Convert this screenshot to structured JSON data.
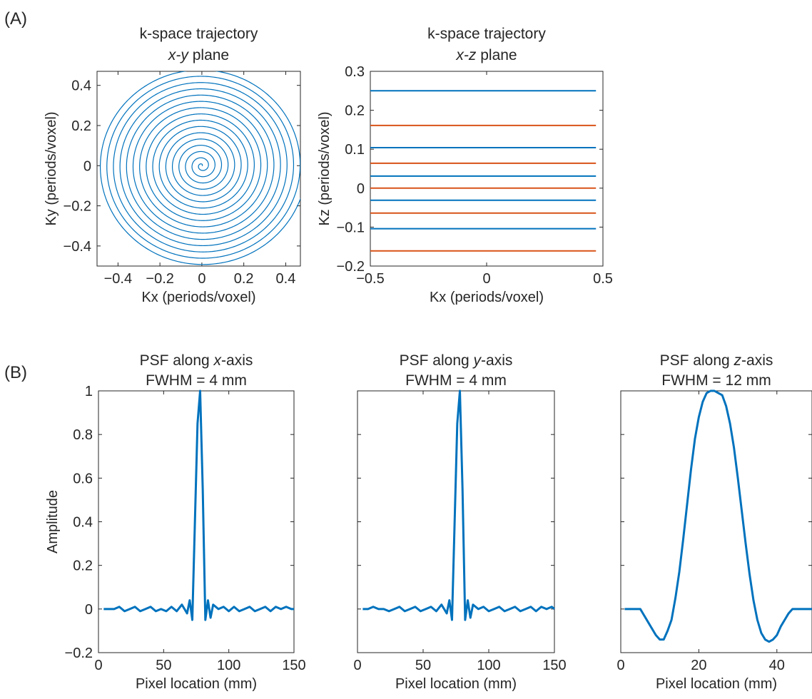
{
  "panel_labels": [
    "(A)",
    "(B)"
  ],
  "colors": {
    "blue": "#0072BD",
    "orange": "#D95319",
    "axis": "#262626"
  },
  "chart_data": [
    {
      "id": "traj_xy",
      "type": "line",
      "title_line1": "k-space trajectory",
      "title_line2_italic": "x-y",
      "title_line2_rest": " plane",
      "xlabel": "Kx (periods/voxel)",
      "ylabel": "Ky (periods/voxel)",
      "xlim": [
        -0.5,
        0.47
      ],
      "ylim": [
        -0.5,
        0.47
      ],
      "xticks": [
        -0.4,
        -0.2,
        0,
        0.2,
        0.4
      ],
      "xticklabels": [
        "−0.4",
        "−0.2",
        "0",
        "0.2",
        "0.4"
      ],
      "yticks": [
        -0.4,
        -0.2,
        0,
        0.2,
        0.4
      ],
      "yticklabels": [
        "−0.4",
        "−0.2",
        "0",
        "0.2",
        "0.4"
      ],
      "grid": false,
      "series": [
        {
          "shape": "archimedean-spiral",
          "turns": 16,
          "r_max": 0.5,
          "color": "blue"
        }
      ]
    },
    {
      "id": "traj_xz",
      "type": "line",
      "title_line1": "k-space trajectory",
      "title_line2_italic": "x-z",
      "title_line2_rest": " plane",
      "xlabel": "Kx (periods/voxel)",
      "ylabel": "Kz (periods/voxel)",
      "xlim": [
        -0.5,
        0.5
      ],
      "ylim": [
        -0.2,
        0.3
      ],
      "xticks": [
        -0.5,
        0,
        0.5
      ],
      "xticklabels": [
        "−0.5",
        "0",
        "0.5"
      ],
      "yticks": [
        -0.2,
        -0.1,
        0,
        0.1,
        0.2,
        0.3
      ],
      "yticklabels": [
        "−0.2",
        "−0.1",
        "0",
        "0.1",
        "0.2",
        "0.3"
      ],
      "grid": false,
      "lines": [
        {
          "kz": 0.25,
          "color": "blue"
        },
        {
          "kz": 0.161,
          "color": "orange"
        },
        {
          "kz": 0.104,
          "color": "blue"
        },
        {
          "kz": 0.064,
          "color": "orange"
        },
        {
          "kz": 0.031,
          "color": "blue"
        },
        {
          "kz": 0.0,
          "color": "orange"
        },
        {
          "kz": -0.031,
          "color": "blue"
        },
        {
          "kz": -0.064,
          "color": "orange"
        },
        {
          "kz": -0.104,
          "color": "blue"
        },
        {
          "kz": -0.161,
          "color": "orange"
        }
      ],
      "line_x_range": [
        -0.5,
        0.47
      ]
    },
    {
      "id": "psf_x",
      "type": "line",
      "title_line1_pre": "PSF along ",
      "title_line1_italic": "x",
      "title_line1_post": "-axis",
      "title_line2": "FWHM = 4 mm",
      "xlabel": "Pixel location (mm)",
      "ylabel": "Amplitude",
      "xlim": [
        0,
        150
      ],
      "ylim": [
        -0.2,
        1
      ],
      "xticks": [
        0,
        50,
        100,
        150
      ],
      "xticklabels": [
        "0",
        "50",
        "100",
        "150"
      ],
      "yticks": [
        -0.2,
        0,
        0.2,
        0.4,
        0.6,
        0.8,
        1
      ],
      "yticklabels": [
        "−0.2",
        "0",
        "0.2",
        "0.4",
        "0.6",
        "0.8",
        "1"
      ],
      "grid": false,
      "x": [
        4,
        8,
        12,
        16,
        20,
        24,
        28,
        32,
        36,
        40,
        44,
        48,
        52,
        56,
        60,
        64,
        68,
        70,
        72,
        74,
        76,
        78,
        80,
        82,
        84,
        86,
        88,
        92,
        96,
        100,
        104,
        108,
        112,
        116,
        120,
        124,
        128,
        132,
        136,
        140,
        144,
        148,
        150
      ],
      "y": [
        0,
        0,
        0,
        0.01,
        -0.01,
        0,
        0.01,
        -0.01,
        0,
        0.01,
        -0.01,
        0,
        -0.01,
        0.01,
        -0.01,
        0.02,
        -0.02,
        0.04,
        -0.05,
        0.4,
        0.85,
        1.0,
        0.55,
        -0.05,
        0.04,
        -0.04,
        0.02,
        0,
        0.01,
        -0.01,
        0.01,
        -0.01,
        0,
        0.01,
        -0.01,
        0,
        0.01,
        -0.01,
        0.01,
        0,
        0.01,
        0,
        0
      ]
    },
    {
      "id": "psf_y",
      "type": "line",
      "title_line1_pre": "PSF along ",
      "title_line1_italic": "y",
      "title_line1_post": "-axis",
      "title_line2": "FWHM = 4 mm",
      "xlabel": "Pixel location (mm)",
      "xlim": [
        0,
        150
      ],
      "ylim": [
        -0.2,
        1
      ],
      "xticks": [
        0,
        50,
        100,
        150
      ],
      "xticklabels": [
        "0",
        "50",
        "100",
        "150"
      ],
      "grid": false,
      "x": [
        4,
        8,
        12,
        16,
        20,
        24,
        28,
        32,
        36,
        40,
        44,
        48,
        52,
        56,
        60,
        64,
        68,
        70,
        72,
        74,
        76,
        78,
        80,
        82,
        84,
        86,
        88,
        92,
        96,
        100,
        104,
        108,
        112,
        116,
        120,
        124,
        128,
        132,
        136,
        140,
        144,
        148,
        150
      ],
      "y": [
        0,
        0,
        0.01,
        0,
        0,
        -0.01,
        0,
        0.01,
        -0.01,
        0,
        0.01,
        -0.01,
        0,
        0.01,
        -0.01,
        0.02,
        -0.02,
        0.04,
        -0.05,
        0.4,
        0.85,
        1.0,
        0.55,
        -0.05,
        0.04,
        -0.04,
        0.02,
        0,
        0.01,
        -0.01,
        0,
        0.01,
        -0.01,
        0,
        0.01,
        -0.01,
        0,
        0.01,
        -0.01,
        0.01,
        0,
        0.01,
        0
      ]
    },
    {
      "id": "psf_z",
      "type": "line",
      "title_line1_pre": "PSF along ",
      "title_line1_italic": "z",
      "title_line1_post": "-axis",
      "title_line2": "FWHM = 12 mm",
      "xlabel": "Pixel location (mm)",
      "xlim": [
        0,
        49
      ],
      "ylim": [
        -0.2,
        1
      ],
      "xticks": [
        0,
        20,
        40
      ],
      "xticklabels": [
        "0",
        "20",
        "40"
      ],
      "grid": false,
      "x": [
        1,
        2,
        3,
        4,
        5,
        6,
        7,
        8,
        9,
        10,
        11,
        12,
        13,
        14,
        15,
        16,
        17,
        18,
        19,
        20,
        21,
        22,
        23,
        24,
        25,
        26,
        27,
        28,
        29,
        30,
        31,
        32,
        33,
        34,
        35,
        36,
        37,
        38,
        39,
        40,
        41,
        42,
        43,
        44,
        45,
        46,
        47,
        48,
        49
      ],
      "y": [
        0,
        0,
        0,
        0,
        0,
        -0.03,
        -0.06,
        -0.09,
        -0.12,
        -0.14,
        -0.14,
        -0.1,
        -0.05,
        0.05,
        0.17,
        0.32,
        0.48,
        0.64,
        0.78,
        0.88,
        0.95,
        0.99,
        1.0,
        1.0,
        0.99,
        0.98,
        0.93,
        0.85,
        0.74,
        0.6,
        0.45,
        0.3,
        0.16,
        0.04,
        -0.05,
        -0.11,
        -0.14,
        -0.15,
        -0.14,
        -0.12,
        -0.08,
        -0.05,
        -0.02,
        0,
        0,
        0,
        0,
        0,
        0
      ]
    }
  ]
}
